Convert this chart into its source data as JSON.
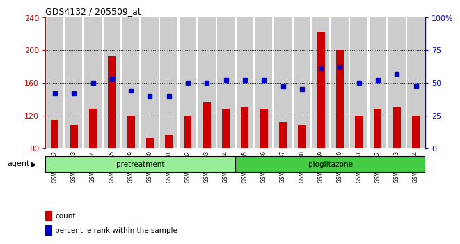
{
  "title": "GDS4132 / 205509_at",
  "samples": [
    "GSM201542",
    "GSM201543",
    "GSM201544",
    "GSM201545",
    "GSM201829",
    "GSM201830",
    "GSM201831",
    "GSM201832",
    "GSM201833",
    "GSM201834",
    "GSM201835",
    "GSM201836",
    "GSM201837",
    "GSM201838",
    "GSM201839",
    "GSM201840",
    "GSM201841",
    "GSM201842",
    "GSM201843",
    "GSM201844"
  ],
  "count_values": [
    115,
    108,
    128,
    192,
    120,
    92,
    96,
    120,
    136,
    128,
    130,
    128,
    112,
    108,
    222,
    200,
    120,
    128,
    130,
    120
  ],
  "percentile_values": [
    42,
    42,
    50,
    53,
    44,
    40,
    40,
    50,
    50,
    52,
    52,
    52,
    47,
    45,
    61,
    62,
    50,
    52,
    57,
    48
  ],
  "bar_color": "#cc0000",
  "dot_color": "#0000cc",
  "pretreatment_indices": [
    0,
    1,
    2,
    3,
    4,
    5,
    6,
    7,
    8,
    9
  ],
  "pioglitazone_indices": [
    10,
    11,
    12,
    13,
    14,
    15,
    16,
    17,
    18,
    19
  ],
  "pretreatment_color": "#99ee99",
  "pioglitazone_color": "#44cc44",
  "ylim_left": [
    80,
    240
  ],
  "ylim_right": [
    0,
    100
  ],
  "yticks_left": [
    80,
    120,
    160,
    200,
    240
  ],
  "yticks_right": [
    0,
    25,
    50,
    75,
    100
  ],
  "yticklabels_right": [
    "0",
    "25",
    "50",
    "75",
    "100%"
  ],
  "bg_color": "#cccccc",
  "legend_count_label": "count",
  "legend_percentile_label": "percentile rank within the sample",
  "grid_lines": [
    120,
    160,
    200
  ]
}
